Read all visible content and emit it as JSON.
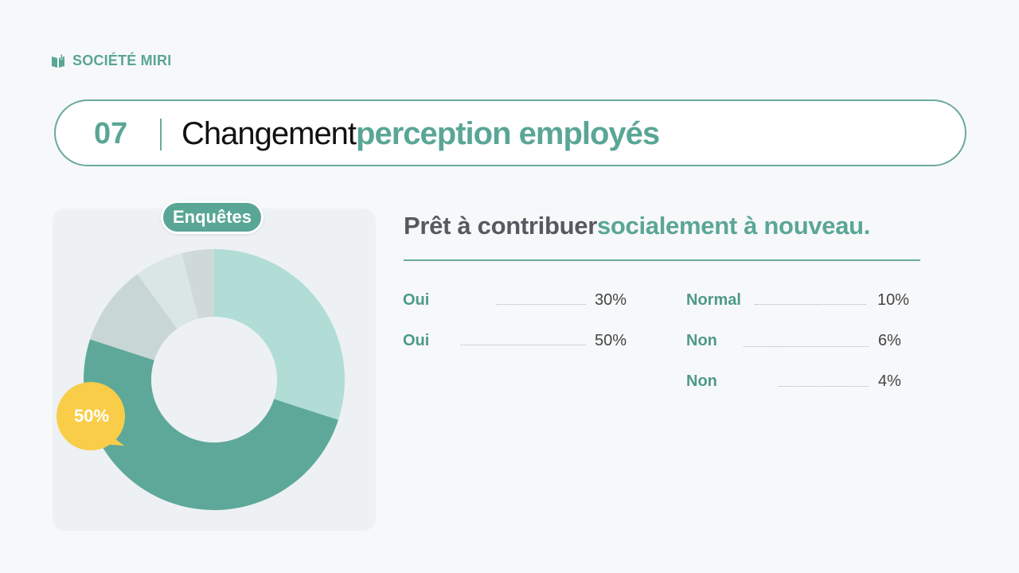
{
  "brand": {
    "name": "SOCIÉTÉ MIRI",
    "icon": "book-icon",
    "color": "#5aa696"
  },
  "header": {
    "number": "07",
    "title_main": "Changement",
    "title_accent": "perception employés"
  },
  "chart": {
    "badge": "Enquêtes",
    "callout": "50%"
  },
  "subtitle": {
    "main": "Prêt à contribuer",
    "accent": "socialement à nouveau."
  },
  "legend": {
    "left": [
      {
        "label": "Oui",
        "value": "30%"
      },
      {
        "label": "Oui",
        "value": "50%"
      }
    ],
    "right": [
      {
        "label": "Normal",
        "value": "10%"
      },
      {
        "label": "Non",
        "value": "6%"
      },
      {
        "label": "Non",
        "value": "4%"
      }
    ]
  },
  "chart_data": {
    "type": "pie",
    "title": "Enquêtes",
    "donut": true,
    "categories": [
      "Oui",
      "Oui",
      "Normal",
      "Non",
      "Non"
    ],
    "values": [
      30,
      50,
      10,
      6,
      4
    ],
    "colors": [
      "#b1ddd6",
      "#5ea89a",
      "#c8d7d5",
      "#d9e6e3",
      "#cfdad8"
    ],
    "highlight": {
      "value": 50,
      "color": "#f9cd48"
    }
  }
}
